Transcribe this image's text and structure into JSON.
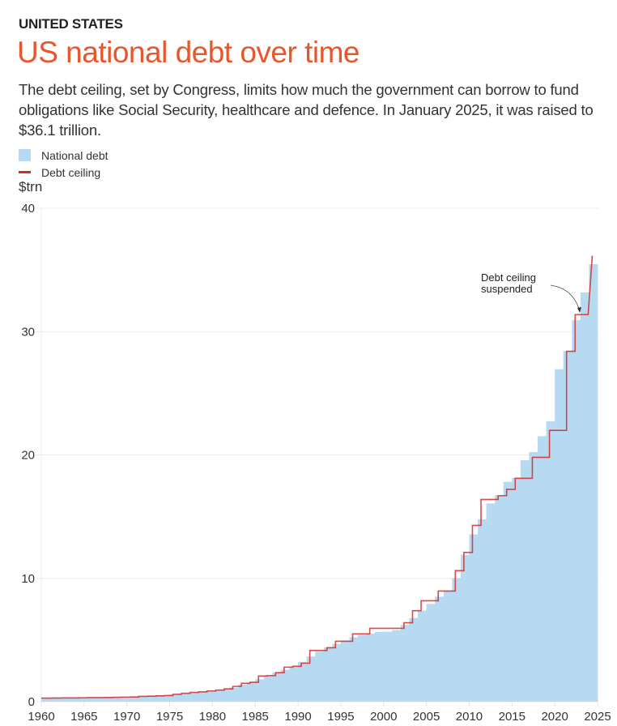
{
  "kicker": "UNITED STATES",
  "title": "US national debt over time",
  "subtitle": "The debt ceiling, set by Congress, limits how much the government can borrow to fund obligations like Social Security, healthcare and defence. In January 2025, it was raised to $36.1 trillion.",
  "legend": [
    {
      "label": "National debt",
      "color": "#b6daf2",
      "kind": "area"
    },
    {
      "label": "Debt ceiling",
      "color": "#d32a2a",
      "kind": "line"
    }
  ],
  "chart_data": {
    "type": "area",
    "title": "US national debt over time",
    "xlabel": "",
    "ylabel": "$trn",
    "xlim": [
      1960,
      2025
    ],
    "ylim": [
      0,
      40
    ],
    "x_ticks": [
      1960,
      1965,
      1970,
      1975,
      1980,
      1985,
      1990,
      1995,
      2000,
      2005,
      2010,
      2015,
      2020,
      2025
    ],
    "y_ticks": [
      0,
      10,
      20,
      30,
      40
    ],
    "grid": true,
    "legend_position": "top-left",
    "annotation": {
      "text": [
        "Debt ceiling",
        "suspended"
      ],
      "x": 2023.5,
      "y": 31.4
    },
    "series": [
      {
        "name": "National debt",
        "style": "step-area",
        "color": "#b6daf2",
        "x": [
          1960,
          1961,
          1962,
          1963,
          1964,
          1965,
          1966,
          1967,
          1968,
          1969,
          1970,
          1971,
          1972,
          1973,
          1974,
          1975,
          1976,
          1977,
          1978,
          1979,
          1980,
          1981,
          1982,
          1983,
          1984,
          1985,
          1986,
          1987,
          1988,
          1989,
          1990,
          1991,
          1992,
          1993,
          1994,
          1995,
          1996,
          1997,
          1998,
          1999,
          2000,
          2001,
          2002,
          2003,
          2004,
          2005,
          2006,
          2007,
          2008,
          2009,
          2010,
          2011,
          2012,
          2013,
          2014,
          2015,
          2016,
          2017,
          2018,
          2019,
          2020,
          2021,
          2022,
          2023,
          2024
        ],
        "values": [
          0.29,
          0.29,
          0.3,
          0.31,
          0.32,
          0.32,
          0.33,
          0.34,
          0.37,
          0.37,
          0.38,
          0.41,
          0.44,
          0.47,
          0.49,
          0.58,
          0.65,
          0.71,
          0.78,
          0.83,
          0.91,
          1.0,
          1.14,
          1.38,
          1.57,
          1.82,
          2.13,
          2.35,
          2.6,
          2.86,
          3.23,
          3.67,
          4.06,
          4.41,
          4.69,
          4.97,
          5.22,
          5.41,
          5.53,
          5.66,
          5.67,
          5.81,
          6.23,
          6.78,
          7.38,
          7.93,
          8.51,
          9.01,
          10.02,
          11.91,
          13.56,
          14.79,
          16.07,
          16.74,
          17.82,
          18.15,
          19.57,
          20.24,
          21.52,
          22.72,
          26.95,
          28.43,
          30.93,
          33.17,
          35.46
        ]
      },
      {
        "name": "Debt ceiling",
        "style": "step-line",
        "color": "#d32a2a",
        "x": [
          1960,
          1961,
          1962,
          1963,
          1964,
          1965,
          1966,
          1967,
          1968,
          1969,
          1970,
          1971,
          1972,
          1973,
          1974,
          1975,
          1976,
          1977,
          1978,
          1979,
          1980,
          1981,
          1982,
          1983,
          1984,
          1985,
          1986,
          1987,
          1988,
          1989,
          1990,
          1991,
          1992,
          1993,
          1994,
          1995,
          1996,
          1997,
          1998,
          1999,
          2000,
          2001,
          2002,
          2003,
          2004,
          2005,
          2006,
          2007,
          2008,
          2009,
          2010,
          2011,
          2012,
          2013,
          2014,
          2015,
          2016,
          2017,
          2018,
          2019,
          2020,
          2021,
          2022,
          2023,
          2024
        ],
        "values": [
          0.29,
          0.3,
          0.31,
          0.31,
          0.32,
          0.33,
          0.33,
          0.34,
          0.36,
          0.37,
          0.38,
          0.43,
          0.45,
          0.47,
          0.5,
          0.6,
          0.68,
          0.75,
          0.8,
          0.87,
          0.94,
          1.04,
          1.24,
          1.49,
          1.57,
          2.08,
          2.11,
          2.35,
          2.8,
          2.87,
          3.12,
          4.15,
          4.15,
          4.37,
          4.9,
          4.9,
          5.5,
          5.5,
          5.95,
          5.95,
          5.95,
          5.95,
          6.4,
          7.38,
          8.18,
          8.18,
          8.97,
          8.97,
          10.62,
          12.1,
          14.29,
          16.39,
          16.39,
          16.7,
          17.21,
          18.11,
          18.11,
          19.81,
          19.81,
          21.99,
          21.99,
          28.4,
          31.38,
          31.38,
          36.1
        ]
      }
    ]
  }
}
